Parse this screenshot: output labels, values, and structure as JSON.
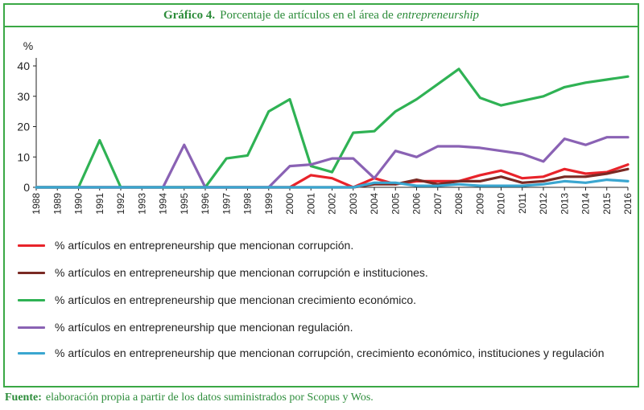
{
  "header": {
    "label": "Gráfico 4.",
    "title_main": "Porcentaje de artículos en el área de",
    "title_em": "entrepreneurship"
  },
  "source": {
    "label": "Fuente:",
    "text": "elaboración propia a partir de los datos suministrados por Scopus y Wos."
  },
  "chart_data": {
    "type": "line",
    "ylabel": "%",
    "ylim": [
      0,
      40
    ],
    "yticks": [
      0,
      10,
      20,
      30,
      40
    ],
    "grid": false,
    "legend_position": "bottom",
    "x": [
      "1988",
      "1989",
      "1990",
      "1991",
      "1992",
      "1993",
      "1994",
      "1995",
      "1996",
      "1997",
      "1998",
      "1999",
      "2000",
      "2001",
      "2002",
      "2003",
      "2004",
      "2005",
      "2006",
      "2007",
      "2008",
      "2009",
      "2010",
      "2011",
      "2012",
      "2013",
      "2014",
      "2015",
      "2016"
    ],
    "series": [
      {
        "name": "% artículos en entrepreneurship que mencionan corrupción.",
        "color": "#e8232a",
        "values": [
          0,
          0,
          0,
          0,
          0,
          0,
          0,
          0,
          0,
          0,
          0,
          0,
          0,
          4,
          3,
          0,
          3,
          1,
          2,
          2,
          2,
          4,
          5.5,
          3,
          3.5,
          6,
          4.5,
          5,
          7.5
        ]
      },
      {
        "name": "% artículos en entrepreneurship que mencionan corrupción e instituciones.",
        "color": "#7a2a24",
        "values": [
          0,
          0,
          0,
          0,
          0,
          0,
          0,
          0,
          0,
          0,
          0,
          0,
          0,
          0,
          0,
          0,
          1,
          1,
          2.5,
          1,
          2,
          2,
          3.5,
          1.5,
          2,
          3.5,
          3.5,
          4.5,
          6
        ]
      },
      {
        "name": "% artículos en entrepreneurship que mencionan crecimiento económico.",
        "color": "#2fb254",
        "values": [
          0,
          0,
          0,
          15.5,
          0,
          0,
          0,
          0,
          0,
          9.5,
          10.5,
          25,
          29,
          7,
          5,
          18,
          18.5,
          25,
          29,
          34,
          39,
          29.5,
          27,
          28.5,
          30,
          33,
          34.5,
          35.5,
          36.5
        ]
      },
      {
        "name": "% artículos en entrepreneurship que mencionan regulación.",
        "color": "#8a62b4",
        "values": [
          0,
          0,
          0,
          0,
          0,
          0,
          0,
          14,
          0,
          0,
          0,
          0,
          7,
          7.5,
          9.5,
          9.5,
          3,
          12,
          10,
          13.5,
          13.5,
          13,
          12,
          11,
          8.5,
          16,
          14,
          16.5,
          16.5
        ]
      },
      {
        "name": "% artículos en entrepreneurship que mencionan corrupción, crecimiento económico, instituciones y regulación",
        "color": "#3aa6d0",
        "values": [
          0,
          0,
          0,
          0,
          0,
          0,
          0,
          0,
          0,
          0,
          0,
          0,
          0,
          0,
          0,
          0,
          1.5,
          1.5,
          0.5,
          0.5,
          1,
          0.5,
          0.5,
          0.5,
          1,
          2,
          1.5,
          2.5,
          2
        ]
      }
    ]
  }
}
